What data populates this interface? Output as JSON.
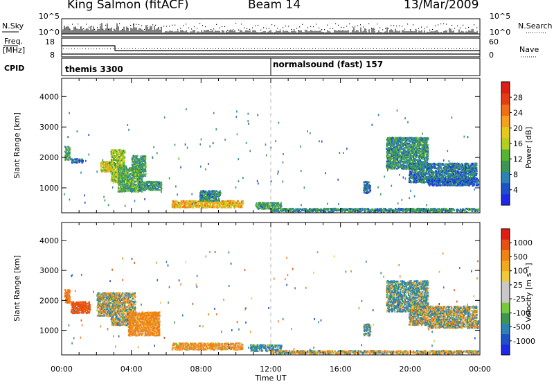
{
  "header": {
    "station": "King Salmon (fitACF)",
    "beam": "Beam 14",
    "date": "13/Mar/2009"
  },
  "strip": {
    "nsky_label": "N.Sky",
    "nsearch_label": "N.Search",
    "left_ticks": [
      "10^5",
      "10^0"
    ],
    "right_ticks": [
      "10^5",
      "10^0"
    ],
    "freq_label": "Freq.",
    "freq_unit": "[MHz]",
    "freq_ticks": [
      "18",
      "8"
    ],
    "nave_label": "Nave",
    "nave_ticks": [
      "60",
      "0"
    ],
    "cpid_label": "CPID",
    "cpid_segments": [
      "themis 3300",
      "normalsound (fast) 157"
    ]
  },
  "colors": {
    "power": [
      "#1e28e6",
      "#1e50c8",
      "#2c82b4",
      "#3c9650",
      "#55b432",
      "#b4cd1e",
      "#e6c81e",
      "#f5a01e",
      "#f06e14",
      "#e63c14",
      "#dc1e14"
    ],
    "velocity": [
      "#dc1e14",
      "#e65014",
      "#f08214",
      "#f0aa1e",
      "#f0c83c",
      "#c8c8c8",
      "#c8c8c8",
      "#78c83c",
      "#3c9650",
      "#2c82b4",
      "#1e50c8",
      "#1e28e6"
    ],
    "gray": "#c8c8c8",
    "dashed_line": "#b4b4b4"
  },
  "chart_data": [
    {
      "type": "heatmap",
      "title": "",
      "xlabel": "",
      "ylabel": "Slant Range [km]",
      "colorbar_label": "Power [dB]",
      "colorbar_ticks": [
        "28",
        "24",
        "20",
        "16",
        "12",
        "8",
        "4"
      ],
      "x_ticks": [
        "00:00",
        "04:00",
        "08:00",
        "12:00",
        "16:00",
        "20:00",
        "00:00"
      ],
      "y_ticks": [
        "1000",
        "2000",
        "3000",
        "4000"
      ],
      "xlim": [
        0,
        24
      ],
      "ylim": [
        180,
        4600
      ],
      "clim": [
        0,
        30
      ],
      "regions": [
        {
          "t": [
            0.15,
            0.45
          ],
          "r": [
            1950,
            2400
          ],
          "v": 10
        },
        {
          "t": [
            0.5,
            1.2
          ],
          "r": [
            1850,
            2000
          ],
          "v": 6
        },
        {
          "t": [
            2.2,
            2.9
          ],
          "r": [
            1550,
            1900
          ],
          "v": 17
        },
        {
          "t": [
            2.8,
            3.6
          ],
          "r": [
            1200,
            2300
          ],
          "v": 14
        },
        {
          "t": [
            3.2,
            4.6
          ],
          "r": [
            900,
            1700
          ],
          "v": 11
        },
        {
          "t": [
            4.4,
            5.7
          ],
          "r": [
            950,
            1250
          ],
          "v": 9
        },
        {
          "t": [
            4.0,
            4.8
          ],
          "r": [
            1400,
            2100
          ],
          "v": 10
        },
        {
          "t": [
            6.3,
            10.4
          ],
          "r": [
            380,
            620
          ],
          "v": 19
        },
        {
          "t": [
            7.9,
            9.1
          ],
          "r": [
            600,
            950
          ],
          "v": 8
        },
        {
          "t": [
            11.1,
            12.6
          ],
          "r": [
            330,
            560
          ],
          "v": 10
        },
        {
          "t": [
            12.0,
            23.9
          ],
          "r": [
            200,
            360
          ],
          "v": 8
        },
        {
          "t": [
            17.3,
            17.7
          ],
          "r": [
            850,
            1250
          ],
          "v": 6
        },
        {
          "t": [
            18.6,
            21.0
          ],
          "r": [
            1650,
            2700
          ],
          "v": 9
        },
        {
          "t": [
            19.9,
            23.8
          ],
          "r": [
            1200,
            1850
          ],
          "v": 7
        },
        {
          "t": [
            21.0,
            23.9
          ],
          "r": [
            1100,
            1350
          ],
          "v": 5
        }
      ]
    },
    {
      "type": "heatmap",
      "title": "",
      "xlabel": "Time UT",
      "ylabel": "Slant Range [km]",
      "colorbar_label": "Velocity [m s⁻¹]",
      "colorbar_ticks": [
        "1000",
        "500",
        "100",
        "25",
        "-25",
        "-100",
        "-500",
        "-1000"
      ],
      "x_ticks": [
        "00:00",
        "04:00",
        "08:00",
        "12:00",
        "16:00",
        "20:00",
        "00:00"
      ],
      "y_ticks": [
        "1000",
        "2000",
        "3000",
        "4000"
      ],
      "xlim": [
        0,
        24
      ],
      "ylim": [
        180,
        4600
      ],
      "clim": [
        -1000,
        1000
      ],
      "regions": [
        {
          "t": [
            0.15,
            0.45
          ],
          "r": [
            1950,
            2400
          ],
          "v": -350
        },
        {
          "t": [
            0.5,
            1.6
          ],
          "r": [
            1600,
            2000
          ],
          "v": -700
        },
        {
          "t": [
            2.0,
            3.0
          ],
          "r": [
            1500,
            2300
          ],
          "v": 0
        },
        {
          "t": [
            2.8,
            4.2
          ],
          "r": [
            1200,
            2300
          ],
          "v": 0
        },
        {
          "t": [
            3.8,
            5.6
          ],
          "r": [
            850,
            1650
          ],
          "v": -250
        },
        {
          "t": [
            6.3,
            10.4
          ],
          "r": [
            380,
            620
          ],
          "v": -200
        },
        {
          "t": [
            10.8,
            12.6
          ],
          "r": [
            330,
            560
          ],
          "v": 200
        },
        {
          "t": [
            12.0,
            23.9
          ],
          "r": [
            200,
            360
          ],
          "v": -60
        },
        {
          "t": [
            17.3,
            17.7
          ],
          "r": [
            850,
            1250
          ],
          "v": 150
        },
        {
          "t": [
            18.6,
            21.0
          ],
          "r": [
            1650,
            2700
          ],
          "v": 120
        },
        {
          "t": [
            19.9,
            23.8
          ],
          "r": [
            1200,
            1850
          ],
          "v": 0
        },
        {
          "t": [
            21.0,
            23.9
          ],
          "r": [
            1100,
            1350
          ],
          "v": 0
        }
      ]
    }
  ]
}
